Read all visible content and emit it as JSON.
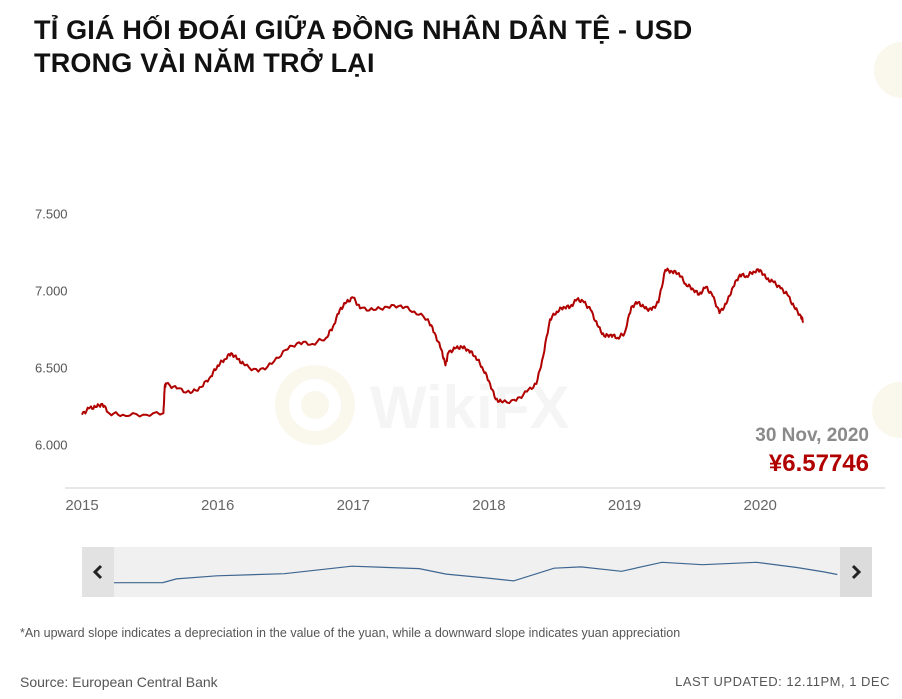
{
  "title_lines": [
    "TỈ GIÁ HỐI ĐOÁI GIỮA ĐỒNG NHÂN DÂN TỆ - USD",
    "TRONG VÀI NĂM TRỞ LẠI"
  ],
  "readout": {
    "date": "30 Nov, 2020",
    "value": "¥6.57746"
  },
  "navigator": {
    "left_icon": "chevron-left-icon",
    "right_icon": "chevron-right-icon"
  },
  "footnote": "*An upward slope indicates a depreciation in the value of the yuan, while a downward slope indicates yuan appreciation",
  "source": "Source: European Central Bank",
  "last_updated": "LAST UPDATED: 12.11PM, 1 DEC",
  "watermark": "WikiFX",
  "colors": {
    "line": "#b00000",
    "navigator_line": "#3e6690",
    "readout": "#b00000"
  },
  "chart_data": {
    "type": "line",
    "title": "TỈ GIÁ HỐI ĐOÁI GIỮA ĐỒNG NHÂN DÂN TỆ - USD TRONG VÀI NĂM TRỞ LẠI",
    "xlabel": "",
    "ylabel": "",
    "yticks": [
      "6.000",
      "6.500",
      "7.000",
      "7.500"
    ],
    "xticks": [
      "2015",
      "2016",
      "2017",
      "2018",
      "2019",
      "2020"
    ],
    "ylim": [
      5.75,
      7.75
    ],
    "xlim": [
      2015.0,
      2020.92
    ],
    "grid": false,
    "series": [
      {
        "values": [
          [
            2015.0,
            6.2
          ],
          [
            2015.05,
            6.24
          ],
          [
            2015.1,
            6.25
          ],
          [
            2015.15,
            6.27
          ],
          [
            2015.2,
            6.21
          ],
          [
            2015.3,
            6.2
          ],
          [
            2015.45,
            6.2
          ],
          [
            2015.6,
            6.21
          ],
          [
            2015.61,
            6.38
          ],
          [
            2015.62,
            6.4
          ],
          [
            2015.7,
            6.37
          ],
          [
            2015.8,
            6.34
          ],
          [
            2015.88,
            6.38
          ],
          [
            2015.95,
            6.45
          ],
          [
            2016.0,
            6.52
          ],
          [
            2016.05,
            6.56
          ],
          [
            2016.1,
            6.6
          ],
          [
            2016.15,
            6.56
          ],
          [
            2016.2,
            6.52
          ],
          [
            2016.3,
            6.48
          ],
          [
            2016.4,
            6.53
          ],
          [
            2016.5,
            6.62
          ],
          [
            2016.6,
            6.67
          ],
          [
            2016.7,
            6.66
          ],
          [
            2016.8,
            6.7
          ],
          [
            2016.85,
            6.77
          ],
          [
            2016.9,
            6.88
          ],
          [
            2016.95,
            6.93
          ],
          [
            2017.0,
            6.96
          ],
          [
            2017.05,
            6.89
          ],
          [
            2017.15,
            6.88
          ],
          [
            2017.25,
            6.9
          ],
          [
            2017.35,
            6.91
          ],
          [
            2017.45,
            6.87
          ],
          [
            2017.55,
            6.82
          ],
          [
            2017.6,
            6.73
          ],
          [
            2017.65,
            6.62
          ],
          [
            2017.68,
            6.52
          ],
          [
            2017.7,
            6.6
          ],
          [
            2017.75,
            6.63
          ],
          [
            2017.8,
            6.64
          ],
          [
            2017.85,
            6.62
          ],
          [
            2017.9,
            6.58
          ],
          [
            2017.95,
            6.51
          ],
          [
            2018.0,
            6.42
          ],
          [
            2018.05,
            6.3
          ],
          [
            2018.1,
            6.28
          ],
          [
            2018.2,
            6.29
          ],
          [
            2018.28,
            6.35
          ],
          [
            2018.35,
            6.4
          ],
          [
            2018.4,
            6.58
          ],
          [
            2018.45,
            6.82
          ],
          [
            2018.5,
            6.87
          ],
          [
            2018.55,
            6.9
          ],
          [
            2018.6,
            6.9
          ],
          [
            2018.65,
            6.95
          ],
          [
            2018.7,
            6.93
          ],
          [
            2018.75,
            6.88
          ],
          [
            2018.8,
            6.78
          ],
          [
            2018.85,
            6.71
          ],
          [
            2018.9,
            6.72
          ],
          [
            2018.95,
            6.7
          ],
          [
            2019.0,
            6.73
          ],
          [
            2019.05,
            6.9
          ],
          [
            2019.1,
            6.93
          ],
          [
            2019.15,
            6.89
          ],
          [
            2019.2,
            6.88
          ],
          [
            2019.25,
            6.93
          ],
          [
            2019.3,
            7.14
          ],
          [
            2019.35,
            7.13
          ],
          [
            2019.4,
            7.12
          ],
          [
            2019.45,
            7.05
          ],
          [
            2019.5,
            7.02
          ],
          [
            2019.55,
            6.98
          ],
          [
            2019.6,
            7.03
          ],
          [
            2019.65,
            6.97
          ],
          [
            2019.7,
            6.86
          ],
          [
            2019.75,
            6.92
          ],
          [
            2019.8,
            7.03
          ],
          [
            2019.85,
            7.11
          ],
          [
            2019.9,
            7.1
          ],
          [
            2019.95,
            7.13
          ],
          [
            2020.0,
            7.14
          ],
          [
            2020.05,
            7.08
          ],
          [
            2020.1,
            7.06
          ],
          [
            2020.15,
            7.02
          ],
          [
            2020.2,
            6.98
          ],
          [
            2020.25,
            6.9
          ],
          [
            2020.3,
            6.84
          ],
          [
            2020.32,
            6.8
          ]
        ]
      }
    ],
    "navigator_series": [
      [
        2015.0,
        6.2
      ],
      [
        2015.6,
        6.21
      ],
      [
        2015.7,
        6.38
      ],
      [
        2016.0,
        6.52
      ],
      [
        2016.5,
        6.62
      ],
      [
        2017.0,
        6.96
      ],
      [
        2017.5,
        6.85
      ],
      [
        2017.7,
        6.6
      ],
      [
        2018.0,
        6.42
      ],
      [
        2018.2,
        6.29
      ],
      [
        2018.5,
        6.87
      ],
      [
        2018.7,
        6.93
      ],
      [
        2019.0,
        6.73
      ],
      [
        2019.3,
        7.14
      ],
      [
        2019.6,
        7.03
      ],
      [
        2020.0,
        7.14
      ],
      [
        2020.3,
        6.9
      ],
      [
        2020.5,
        6.7
      ],
      [
        2020.6,
        6.58
      ]
    ]
  }
}
